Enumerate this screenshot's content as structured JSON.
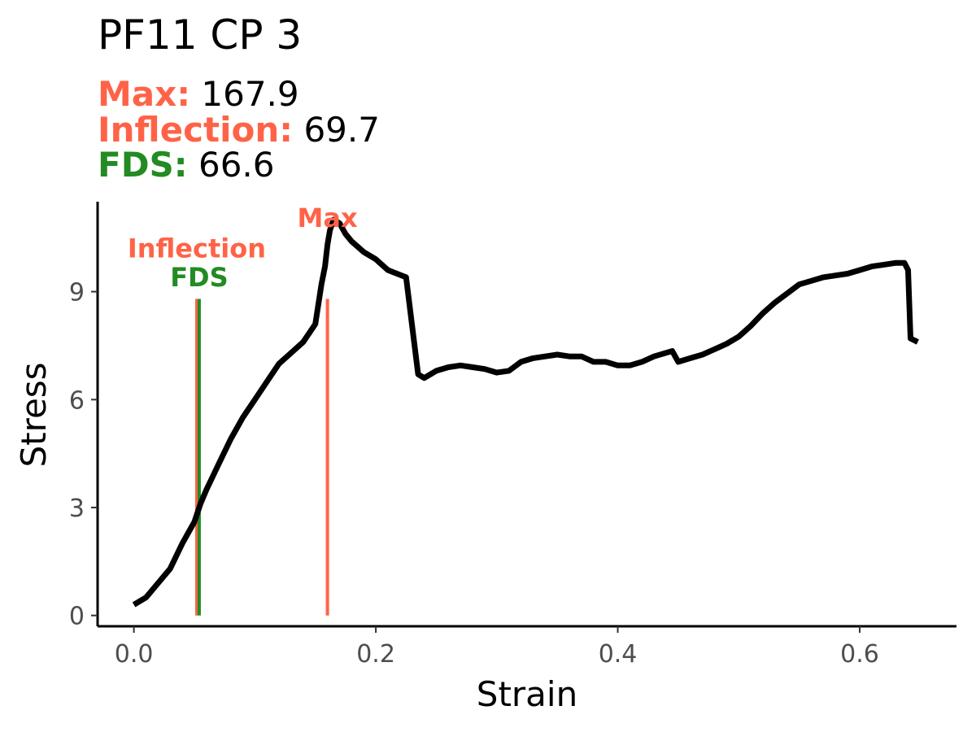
{
  "header": {
    "title": "PF11 CP 3",
    "stats": [
      {
        "label": "Max:",
        "value": "167.9",
        "color": "#FF6347"
      },
      {
        "label": "Inflection:",
        "value": "69.7",
        "color": "#FF6347"
      },
      {
        "label": "FDS:",
        "value": "66.6",
        "color": "#228B22"
      }
    ]
  },
  "chart_data": {
    "type": "line",
    "xlabel": "Strain",
    "ylabel": "Stress",
    "xlim": [
      -0.03,
      0.68
    ],
    "ylim": [
      -0.3,
      11.5
    ],
    "xticks": [
      0.0,
      0.2,
      0.4,
      0.6
    ],
    "xtick_labels": [
      "0.0",
      "0.2",
      "0.4",
      "0.6"
    ],
    "yticks": [
      0,
      3,
      6,
      9
    ],
    "ytick_labels": [
      "0",
      "3",
      "6",
      "9"
    ],
    "grid": false,
    "line_color": "#000000",
    "series": [
      {
        "x": [
          0.0,
          0.01,
          0.02,
          0.03,
          0.04,
          0.045,
          0.05,
          0.055,
          0.06,
          0.07,
          0.08,
          0.09,
          0.1,
          0.11,
          0.12,
          0.13,
          0.14,
          0.15,
          0.155,
          0.158,
          0.16,
          0.162,
          0.165,
          0.17,
          0.175,
          0.18,
          0.19,
          0.2,
          0.21,
          0.225,
          0.235,
          0.24,
          0.25,
          0.26,
          0.27,
          0.28,
          0.29,
          0.3,
          0.31,
          0.32,
          0.33,
          0.34,
          0.35,
          0.36,
          0.37,
          0.38,
          0.39,
          0.4,
          0.41,
          0.42,
          0.43,
          0.44,
          0.445,
          0.45,
          0.46,
          0.47,
          0.48,
          0.49,
          0.5,
          0.51,
          0.52,
          0.53,
          0.54,
          0.55,
          0.56,
          0.57,
          0.58,
          0.59,
          0.6,
          0.61,
          0.62,
          0.63,
          0.637,
          0.64,
          0.642,
          0.648
        ],
        "y": [
          0.3,
          0.5,
          0.9,
          1.3,
          2.0,
          2.3,
          2.6,
          3.1,
          3.5,
          4.2,
          4.9,
          5.5,
          6.0,
          6.5,
          7.0,
          7.3,
          7.6,
          8.1,
          9.2,
          9.7,
          10.3,
          10.7,
          11.0,
          10.9,
          10.6,
          10.4,
          10.1,
          9.9,
          9.6,
          9.4,
          6.7,
          6.6,
          6.8,
          6.9,
          6.95,
          6.9,
          6.85,
          6.75,
          6.8,
          7.05,
          7.15,
          7.2,
          7.25,
          7.2,
          7.2,
          7.05,
          7.05,
          6.95,
          6.95,
          7.05,
          7.2,
          7.3,
          7.35,
          7.05,
          7.15,
          7.25,
          7.4,
          7.55,
          7.75,
          8.05,
          8.4,
          8.7,
          8.95,
          9.2,
          9.3,
          9.4,
          9.45,
          9.5,
          9.6,
          9.7,
          9.75,
          9.8,
          9.8,
          9.6,
          7.7,
          7.6
        ]
      }
    ],
    "markers": [
      {
        "label": "Inflection",
        "x": 0.052,
        "y_top": 8.8,
        "color": "#FF6347",
        "label_y": 9.95
      },
      {
        "label": "FDS",
        "x": 0.054,
        "y_top": 8.8,
        "color": "#228B22",
        "label_y": 9.15
      },
      {
        "label": "Max",
        "x": 0.16,
        "y_top": 8.8,
        "color": "#FF6347",
        "label_y": 10.8
      }
    ]
  }
}
